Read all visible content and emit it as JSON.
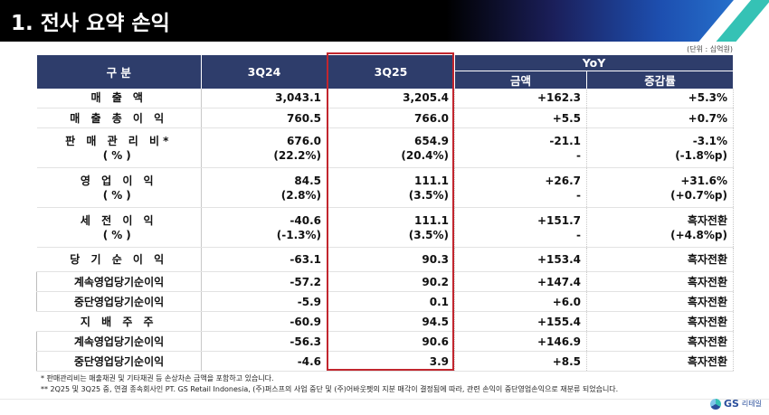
{
  "header": {
    "title": "1. 전사 요약 손익"
  },
  "unit_note": "(단위 : 십억원)",
  "table": {
    "headers": {
      "category": "구 분",
      "col1": "3Q24",
      "col2": "3Q25",
      "yoy": "YoY",
      "yoy_amount": "금액",
      "yoy_rate": "증감률"
    },
    "rows": [
      {
        "label": "매 출 액",
        "v1": "3,043.1",
        "v2": "3,205.4",
        "amt": "+162.3",
        "rate": "+5.3%"
      },
      {
        "label": "매 출 총 이 익",
        "v1": "760.5",
        "v2": "766.0",
        "amt": "+5.5",
        "rate": "+0.7%"
      },
      {
        "label": "판 매 관 리 비*",
        "label2": "(%)",
        "v1": "676.0",
        "v1b": "(22.2%)",
        "v2": "654.9",
        "v2b": "(20.4%)",
        "amt": "-21.1",
        "amtb": "-",
        "rate": "-3.1%",
        "rateb": "(-1.8%p)"
      },
      {
        "label": "영 업 이 익",
        "label2": "(%)",
        "v1": "84.5",
        "v1b": "(2.8%)",
        "v2": "111.1",
        "v2b": "(3.5%)",
        "amt": "+26.7",
        "amtb": "-",
        "rate": "+31.6%",
        "rateb": "(+0.7%p)"
      },
      {
        "label": "세 전 이 익",
        "label2": "(%)",
        "v1": "-40.6",
        "v1b": "(-1.3%)",
        "v2": "111.1",
        "v2b": "(3.5%)",
        "amt": "+151.7",
        "amtb": "-",
        "rate": "흑자전환",
        "rateb": "(+4.8%p)"
      },
      {
        "label": "당 기 순 이 익",
        "v1": "-63.1",
        "v2": "90.3",
        "amt": "+153.4",
        "rate": "흑자전환"
      },
      {
        "label": "계속영업당기순이익",
        "v1": "-57.2",
        "v2": "90.2",
        "amt": "+147.4",
        "rate": "흑자전환"
      },
      {
        "label": "중단영업당기순이익",
        "v1": "-5.9",
        "v2": "0.1",
        "amt": "+6.0",
        "rate": "흑자전환"
      },
      {
        "label": "지 배 주 주",
        "v1": "-60.9",
        "v2": "94.5",
        "amt": "+155.4",
        "rate": "흑자전환"
      },
      {
        "label": "계속영업당기순이익",
        "v1": "-56.3",
        "v2": "90.6",
        "amt": "+146.9",
        "rate": "흑자전환"
      },
      {
        "label": "중단영업당기순이익",
        "v1": "-4.6",
        "v2": "3.9",
        "amt": "+8.5",
        "rate": "흑자전환"
      }
    ]
  },
  "footnotes": {
    "fn1": "* 판매관리비는 매출채권 및 기타채권 등 손상차손 금액을 포함하고 있습니다.",
    "fn2": "** 2Q25 및 3Q25 중, 연결 종속회사인 PT. GS Retail Indonesia, (주)퍼스프의 사업 중단 및 (주)어바웃펫의 지분 매각이 결정됨에 따라, 관련 손익이 중단영업손익으로 재분류 되었습니다."
  },
  "logo": {
    "brand": "GS",
    "sub": "리테일"
  },
  "colors": {
    "header_bg": "#2e3d6b",
    "highlight": "#c2262e",
    "accent_teal": "#35c2b5"
  }
}
